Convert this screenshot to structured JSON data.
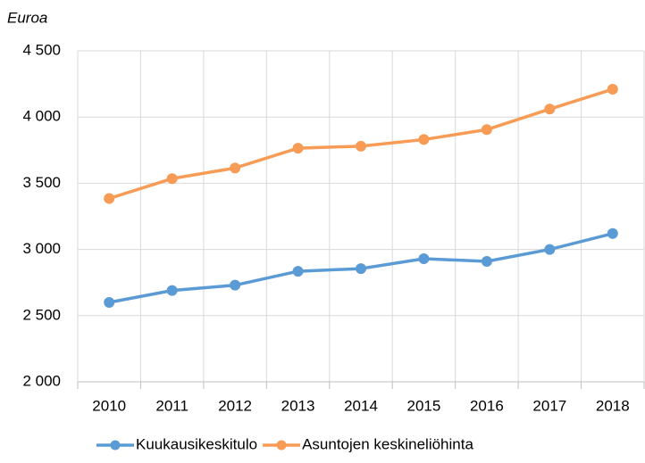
{
  "chart_data": {
    "type": "line",
    "y_label": "Euroa",
    "categories": [
      "2010",
      "2011",
      "2012",
      "2013",
      "2014",
      "2015",
      "2016",
      "2017",
      "2018"
    ],
    "series": [
      {
        "name": "Kuukausikeskitulo",
        "color": "#5b9bd5",
        "values": [
          2600,
          2690,
          2730,
          2835,
          2855,
          2930,
          2910,
          3000,
          3120
        ]
      },
      {
        "name": "Asuntojen keskineliöhinta",
        "color": "#f79b55",
        "values": [
          3385,
          3535,
          3615,
          3765,
          3780,
          3830,
          3905,
          4060,
          4210
        ]
      }
    ],
    "ylim": [
      2000,
      4500
    ],
    "yticks": [
      {
        "value": 2000,
        "label": "2 000"
      },
      {
        "value": 2500,
        "label": "2 500"
      },
      {
        "value": 3000,
        "label": "3 000"
      },
      {
        "value": 3500,
        "label": "3 500"
      },
      {
        "value": 4000,
        "label": "4 000"
      },
      {
        "value": 4500,
        "label": "4 500"
      }
    ],
    "grid": true,
    "legend": "bottom"
  }
}
